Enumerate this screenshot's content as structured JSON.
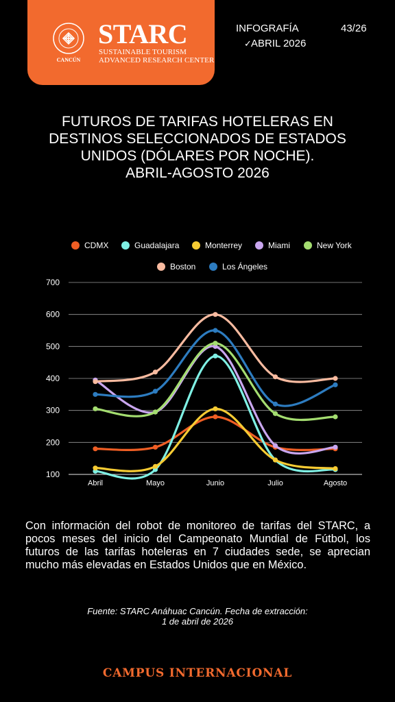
{
  "header": {
    "brand": "STARC",
    "brand_subtitle_1": "SUSTAINABLE TOURISM",
    "brand_subtitle_2": "ADVANCED RESEARCH CENTER",
    "seal_text": "UNIVERSIDAD ANÁHUAC · VINCE IN BONO MALUM",
    "seal_caption": "CANCÚN",
    "infografia": "INFOGRAFÍA",
    "number": "43/26",
    "date": "ABRIL 2026",
    "brand_color": "#f26a2e"
  },
  "title_lines": [
    "FUTUROS DE TARIFAS HOTELERAS EN",
    "DESTINOS SELECCIONADOS DE ESTADOS",
    "UNIDOS (DÓLARES POR NOCHE).",
    "ABRIL-AGOSTO 2026"
  ],
  "chart_data": {
    "type": "line",
    "smooth": true,
    "categories": [
      "Abril",
      "Mayo",
      "Junio",
      "Julio",
      "Agosto"
    ],
    "ylim": [
      100,
      700
    ],
    "yticks": [
      100,
      200,
      300,
      400,
      500,
      600,
      700
    ],
    "grid": true,
    "legend_position": "top",
    "series": [
      {
        "name": "CDMX",
        "color": "#ef5e24",
        "values": [
          180,
          185,
          280,
          185,
          180
        ]
      },
      {
        "name": "Guadalajara",
        "color": "#7ff0e4",
        "values": [
          110,
          115,
          470,
          145,
          115
        ]
      },
      {
        "name": "Monterrey",
        "color": "#f6cb33",
        "values": [
          120,
          125,
          305,
          145,
          118
        ]
      },
      {
        "name": "Miami",
        "color": "#c9a6ef",
        "values": [
          395,
          295,
          500,
          190,
          185
        ]
      },
      {
        "name": "New York",
        "color": "#a4dd70",
        "values": [
          305,
          295,
          510,
          290,
          280
        ]
      },
      {
        "name": "Boston",
        "color": "#f9bba0",
        "values": [
          390,
          420,
          600,
          405,
          400
        ]
      },
      {
        "name": "Los Ángeles",
        "color": "#2d7cc0",
        "values": [
          350,
          360,
          550,
          320,
          380
        ]
      }
    ]
  },
  "body_text": "Con información del robot de monitoreo de tarifas del STARC, a pocos meses del inicio del Campeonato Mundial de Fútbol, los futuros de las tarifas hoteleras en 7 ciudades sede, se aprecian mucho más elevadas en Estados Unidos que en México.",
  "source_line_1": "Fuente: STARC Anáhuac Cancún. Fecha de extracción:",
  "source_line_2": "1 de abril de 2026",
  "footer": "CAMPUS INTERNACIONAL"
}
